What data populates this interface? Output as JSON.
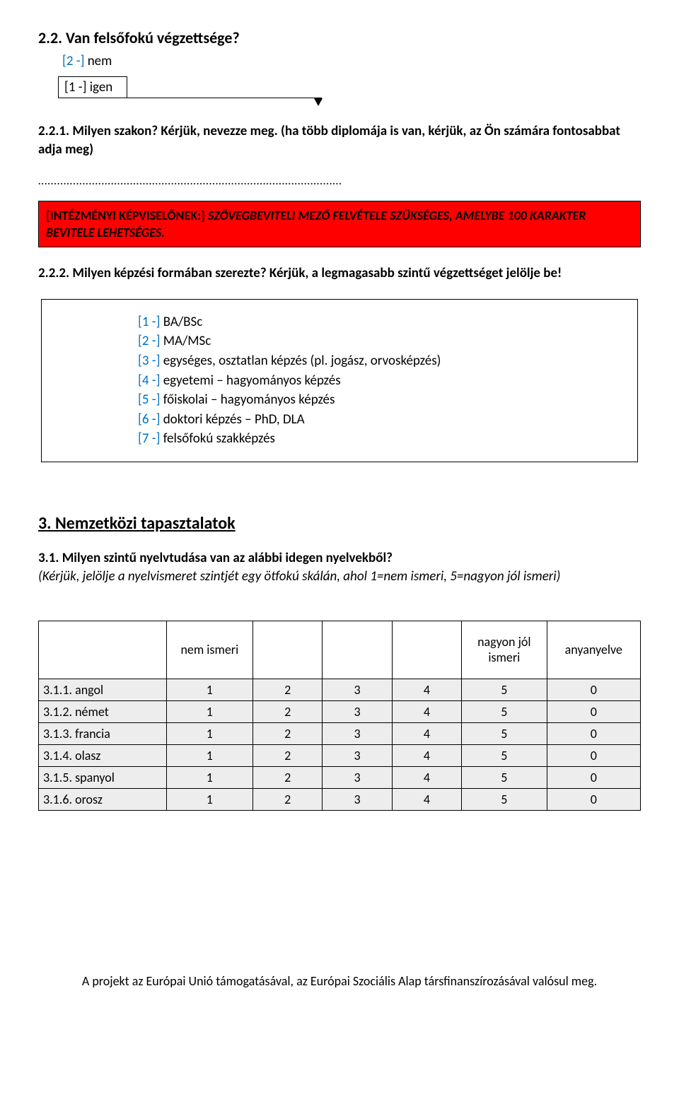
{
  "q22": {
    "title": "2.2. Van felsőfokú végzettsége?",
    "opt_no_code": "[2 -]",
    "opt_no_text": " nem",
    "opt_yes_code": "[1 -]",
    "opt_yes_text": " igen"
  },
  "q221": {
    "title": "2.2.1. Milyen szakon? Kérjük, nevezze meg. (ha több diplomája is van, kérjük, az Ön számára fontosabbat adja meg)",
    "dots": "……………………………………………………………………………………"
  },
  "redbox": {
    "intez": "[INTÉZMÉNYI KÉPVISELŐNEK:] ",
    "rest": "SZÖVEGBEVITELI MEZŐ FELVÉTELE SZÜKSÉGES, AMELYBE 100 KARAKTER BEVITELE LEHETSÉGES."
  },
  "q222": {
    "title": "2.2.2. Milyen képzési formában szerezte? Kérjük, a legmagasabb szintű végzettséget jelölje be!",
    "opts": [
      {
        "code": "[1 -]",
        "text": " BA/BSc"
      },
      {
        "code": "[2 -]",
        "text": " MA/MSc"
      },
      {
        "code": "[3 -]",
        "text": " egységes, osztatlan képzés (pl. jogász, orvosképzés)"
      },
      {
        "code": "[4 -]",
        "text": " egyetemi – hagyományos képzés"
      },
      {
        "code": "[5 -]",
        "text": " főiskolai – hagyományos képzés"
      },
      {
        "code": "[6 -]",
        "text": " doktori képzés – PhD, DLA"
      },
      {
        "code": "[7 -]",
        "text": " felsőfokú szakképzés"
      }
    ]
  },
  "section3": {
    "heading": "3. Nemzetközi tapasztalatok"
  },
  "q31": {
    "title": "3.1. Milyen szintű nyelvtudása van az alábbi idegen nyelvekből?",
    "sub": "(Kérjük, jelölje a nyelvismeret szintjét egy ötfokú skálán, ahol 1=nem ismeri, 5=nagyon jól ismeri)"
  },
  "table": {
    "colw": {
      "label": 180,
      "c1": 122,
      "c2": 98,
      "c3": 98,
      "c4": 98,
      "c5": 120,
      "c6": 132
    },
    "headers": [
      "",
      "nem ismeri",
      "",
      "",
      "",
      "nagyon jól ismeri",
      "anyanyelve"
    ],
    "rows": [
      {
        "label": "3.1.1. angol",
        "vals": [
          "1",
          "2",
          "3",
          "4",
          "5",
          "0"
        ]
      },
      {
        "label": "3.1.2. német",
        "vals": [
          "1",
          "2",
          "3",
          "4",
          "5",
          "0"
        ]
      },
      {
        "label": "3.1.3. francia",
        "vals": [
          "1",
          "2",
          "3",
          "4",
          "5",
          "0"
        ]
      },
      {
        "label": "3.1.4. olasz",
        "vals": [
          "1",
          "2",
          "3",
          "4",
          "5",
          "0"
        ]
      },
      {
        "label": "3.1.5. spanyol",
        "vals": [
          "1",
          "2",
          "3",
          "4",
          "5",
          "0"
        ]
      },
      {
        "label": "3.1.6. orosz",
        "vals": [
          "1",
          "2",
          "3",
          "4",
          "5",
          "0"
        ]
      }
    ]
  },
  "footer": "A projekt az Európai Unió támogatásával, az Európai Szociális Alap társfinanszírozásával valósul meg."
}
